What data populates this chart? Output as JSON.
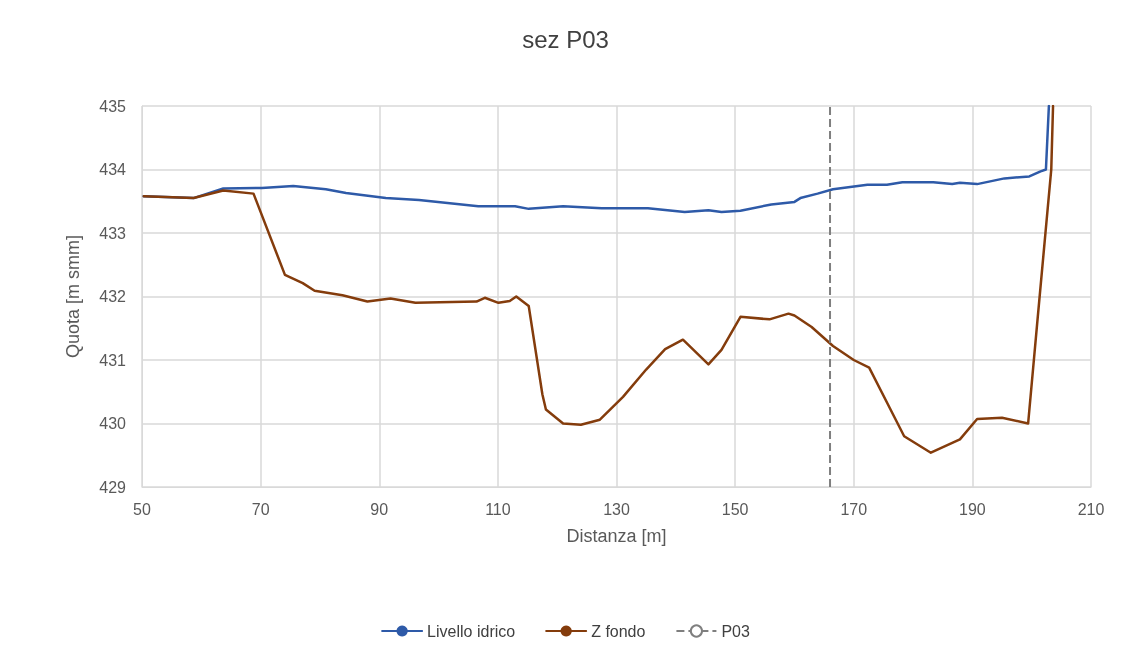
{
  "chart_data": {
    "type": "line",
    "title": "sez P03",
    "xlabel": "Distanza [m]",
    "ylabel": "Quota [m smm]",
    "xlim": [
      50,
      210
    ],
    "xticks": [
      50,
      70,
      90,
      110,
      130,
      150,
      170,
      190,
      210
    ],
    "ylim": [
      429,
      435
    ],
    "yticks": [
      429,
      430,
      431,
      432,
      433,
      434,
      435
    ],
    "grid": true,
    "legend": "bottom",
    "marker": "none",
    "line_style": "solid",
    "series": [
      {
        "name": "Livello idrico",
        "color": "#2e5aa8",
        "x": [
          50.3,
          58.7,
          63.7,
          70.2,
          75.5,
          81.0,
          84.4,
          91.1,
          96.7,
          106.7,
          112.9,
          115.2,
          121.0,
          127.5,
          135.3,
          141.5,
          145.5,
          147.7,
          150.9,
          156.1,
          160.0,
          161.0,
          163.9,
          166.5,
          172.3,
          175.6,
          178.2,
          183.4,
          186.6,
          187.9,
          190.8,
          195.4,
          199.6,
          201.5,
          202.4,
          202.9
        ],
        "values": [
          433.58,
          433.55,
          433.7,
          433.71,
          433.74,
          433.69,
          433.63,
          433.55,
          433.52,
          433.42,
          433.42,
          433.38,
          433.42,
          433.39,
          433.39,
          433.33,
          433.36,
          433.33,
          433.35,
          433.45,
          433.49,
          433.55,
          433.62,
          433.69,
          433.76,
          433.76,
          433.8,
          433.8,
          433.77,
          433.79,
          433.77,
          433.86,
          433.89,
          433.97,
          434.0,
          435.0
        ]
      },
      {
        "name": "Z fondo",
        "color": "#843c0c",
        "x": [
          50.3,
          58.7,
          63.7,
          68.8,
          74.1,
          77.1,
          79.1,
          83.8,
          88.0,
          91.9,
          96.1,
          106.4,
          107.8,
          110.1,
          112.0,
          113.1,
          115.2,
          117.5,
          118.1,
          121.0,
          124.0,
          127.2,
          131.1,
          135.0,
          138.2,
          141.2,
          145.5,
          147.7,
          150.9,
          155.8,
          159.0,
          160.0,
          162.9,
          166.5,
          170.0,
          172.6,
          175.6,
          178.5,
          183.0,
          187.9,
          190.8,
          195.0,
          199.4,
          200.9,
          203.3,
          203.6
        ],
        "values": [
          433.58,
          433.55,
          433.67,
          433.62,
          432.34,
          432.21,
          432.09,
          432.02,
          431.92,
          431.97,
          431.9,
          431.92,
          431.98,
          431.9,
          431.93,
          432.0,
          431.85,
          430.46,
          430.22,
          430.0,
          429.98,
          430.06,
          430.42,
          430.85,
          431.17,
          431.32,
          430.93,
          431.16,
          431.68,
          431.64,
          431.73,
          431.7,
          431.52,
          431.22,
          431.0,
          430.88,
          430.33,
          429.8,
          429.54,
          429.75,
          430.07,
          430.09,
          430.0,
          431.55,
          434.0,
          435.0
        ]
      }
    ],
    "ref_lines": [
      {
        "axis": "x",
        "value": 166,
        "label": "P03",
        "color": "#7f7f7f",
        "line_style": "dashed"
      }
    ]
  }
}
